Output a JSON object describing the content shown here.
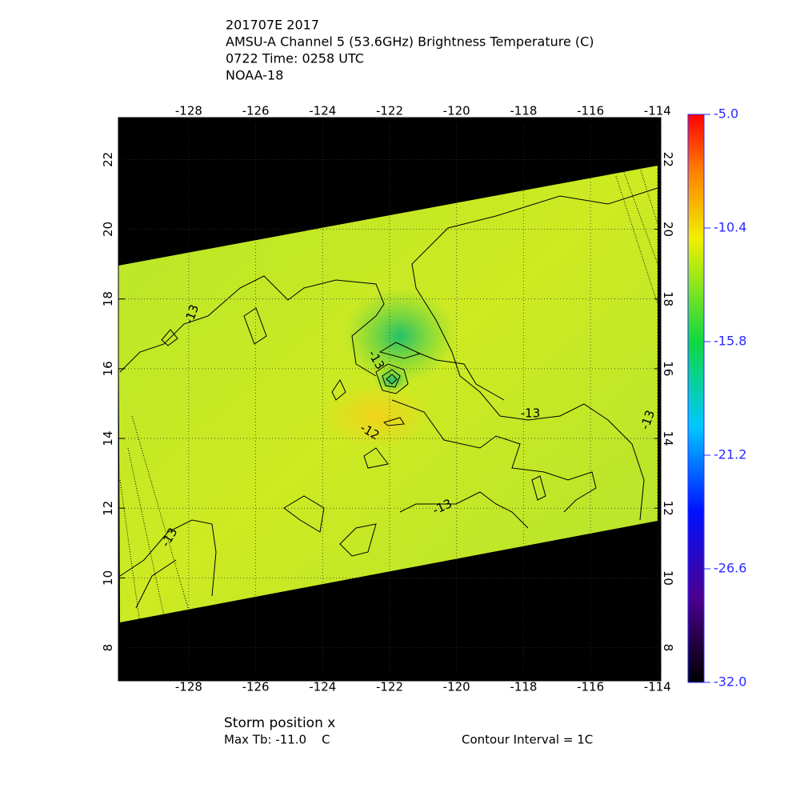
{
  "header": {
    "lines": [
      "201707E 2017",
      "AMSU-A Channel 5 (53.6GHz) Brightness Temperature (C)",
      "0722 Time: 0258 UTC",
      "NOAA-18"
    ]
  },
  "map": {
    "xlim": [
      -130.1,
      -113.9
    ],
    "ylim": [
      7.05,
      23.2
    ],
    "xticks": [
      -128,
      -126,
      -124,
      -122,
      -120,
      -118,
      -116,
      -114
    ],
    "yticks": [
      8,
      10,
      12,
      14,
      16,
      18,
      20,
      22
    ],
    "contour_labels": [
      -13,
      -13,
      -12,
      -13,
      -13,
      -13,
      -13
    ]
  },
  "colorbar": {
    "lim": [
      -32,
      -5
    ],
    "ticks": [
      {
        "value": -5,
        "label": "-5.0"
      },
      -10.4,
      -15.8,
      -21.2,
      -26.6,
      {
        "value": -32,
        "label": "-32.0"
      }
    ]
  },
  "footer": {
    "storm": "Storm position x",
    "max_tb": "Max Tb: -11.0    C",
    "interval": "Contour Interval = 1C"
  }
}
